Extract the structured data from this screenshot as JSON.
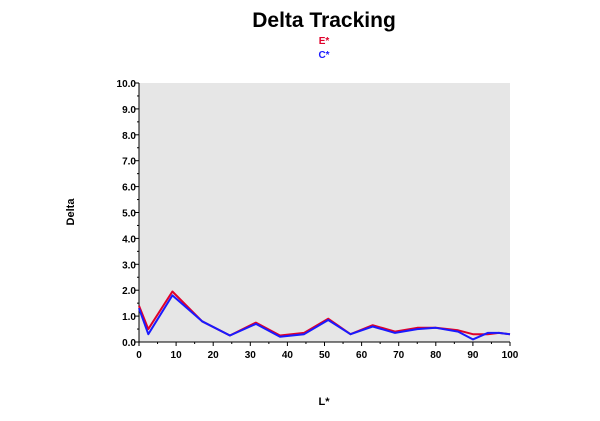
{
  "chart_data": {
    "type": "line",
    "title": "Delta Tracking",
    "xlabel": "L*",
    "ylabel": "Delta",
    "xlim": [
      0,
      100
    ],
    "ylim": [
      0.0,
      10.0
    ],
    "x_ticks": [
      "0",
      "10",
      "20",
      "30",
      "40",
      "50",
      "60",
      "70",
      "80",
      "90",
      "100"
    ],
    "y_ticks": [
      "0.0",
      "1.0",
      "2.0",
      "3.0",
      "4.0",
      "5.0",
      "6.0",
      "7.0",
      "8.0",
      "9.0",
      "10.0"
    ],
    "grid": false,
    "plot_background": "#e6e6e6",
    "legend_position": "top-center",
    "series": [
      {
        "name": "E*",
        "color": "#e0002a",
        "x": [
          0,
          2.5,
          9,
          17,
          24.5,
          31.5,
          38,
          44.5,
          51,
          57,
          63,
          69,
          75,
          80,
          86,
          90,
          94,
          97,
          100
        ],
        "y": [
          1.4,
          0.5,
          1.95,
          0.8,
          0.25,
          0.75,
          0.25,
          0.35,
          0.9,
          0.3,
          0.65,
          0.4,
          0.55,
          0.55,
          0.45,
          0.3,
          0.3,
          0.35,
          0.3
        ]
      },
      {
        "name": "C*",
        "color": "#1a1aff",
        "x": [
          0,
          2.5,
          9,
          17,
          24.5,
          31.5,
          38,
          44.5,
          51,
          57,
          63,
          69,
          75,
          80,
          86,
          90,
          94,
          97,
          100
        ],
        "y": [
          1.3,
          0.3,
          1.8,
          0.8,
          0.25,
          0.7,
          0.2,
          0.3,
          0.85,
          0.3,
          0.6,
          0.35,
          0.5,
          0.55,
          0.4,
          0.1,
          0.35,
          0.35,
          0.3
        ]
      }
    ]
  }
}
